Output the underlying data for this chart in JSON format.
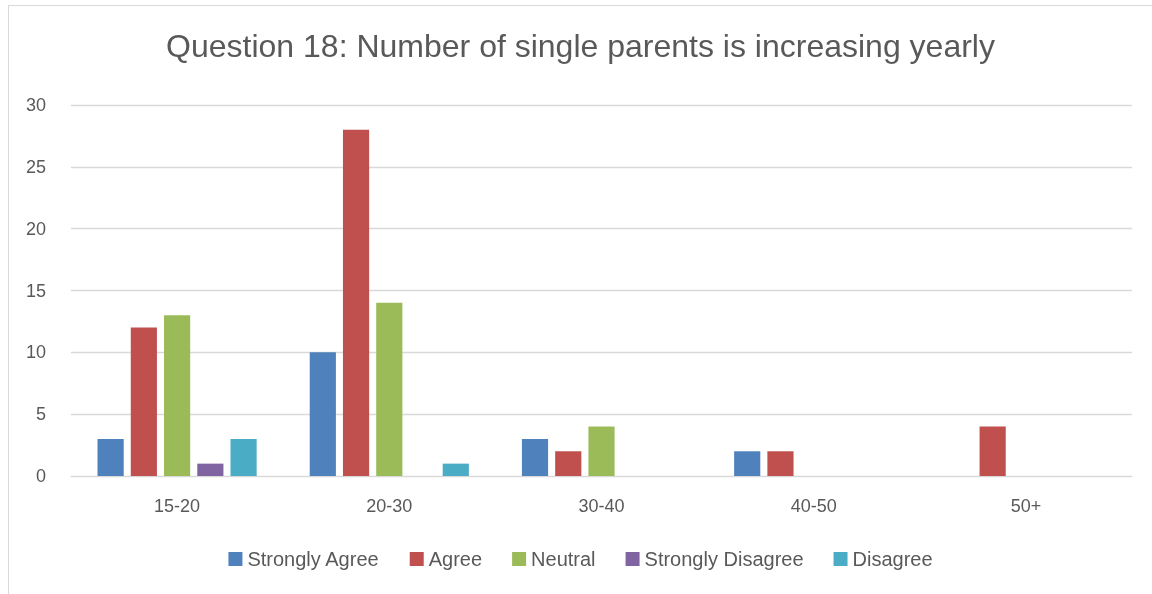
{
  "chart_data": {
    "type": "bar",
    "title": "Question 18: Number of single parents is increasing yearly",
    "categories": [
      "15-20",
      "20-30",
      "30-40",
      "40-50",
      "50+"
    ],
    "series": [
      {
        "name": "Strongly Agree",
        "color": "#4f81bd",
        "values": [
          3,
          10,
          3,
          2,
          0
        ]
      },
      {
        "name": "Agree",
        "color": "#c0504d",
        "values": [
          12,
          28,
          2,
          2,
          4
        ]
      },
      {
        "name": "Neutral",
        "color": "#9bbb59",
        "values": [
          13,
          14,
          4,
          0,
          0
        ]
      },
      {
        "name": "Strongly Disagree",
        "color": "#8064a2",
        "values": [
          1,
          0,
          0,
          0,
          0
        ]
      },
      {
        "name": "Disagree",
        "color": "#4bacc6",
        "values": [
          3,
          1,
          0,
          0,
          0
        ]
      }
    ],
    "ylim": [
      0,
      30
    ],
    "yticks": [
      0,
      5,
      10,
      15,
      20,
      25,
      30
    ],
    "grid": "y",
    "legend": "bottom"
  }
}
